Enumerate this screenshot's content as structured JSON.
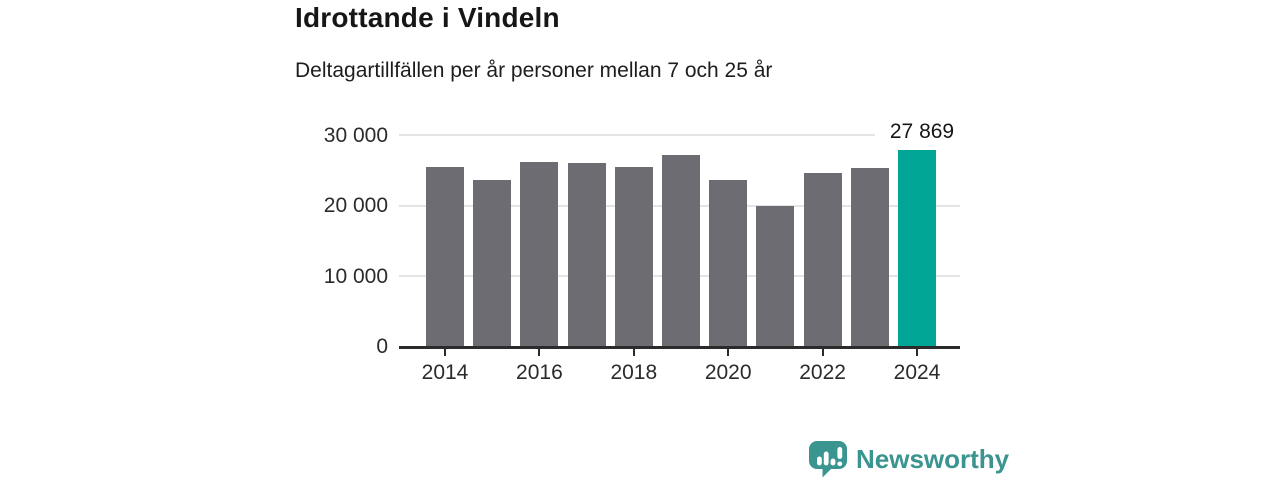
{
  "header": {
    "title": "Idrottande i Vindeln",
    "subtitle": "Deltagartillfällen per år personer mellan 7 och 25 år"
  },
  "chart_data": {
    "type": "bar",
    "title": "Idrottande i Vindeln",
    "subtitle": "Deltagartillfällen per år personer mellan 7 och 25 år",
    "categories": [
      "2014",
      "2015",
      "2016",
      "2017",
      "2018",
      "2019",
      "2020",
      "2021",
      "2022",
      "2023",
      "2024"
    ],
    "values": [
      25400,
      23550,
      26100,
      26050,
      25400,
      27200,
      23650,
      19950,
      24650,
      25300,
      27869
    ],
    "highlight_index": 10,
    "highlight_value_label": "27 869",
    "bar_color": "#6c6c72",
    "highlight_color": "#00a596",
    "ylim": [
      0,
      30000
    ],
    "yticks": [
      0,
      10000,
      20000,
      30000
    ],
    "ytick_labels": [
      "0",
      "10 000",
      "20 000",
      "30 000"
    ],
    "xtick_labels": [
      "2014",
      "2016",
      "2018",
      "2020",
      "2022",
      "2024"
    ],
    "grid": "horizontal",
    "legend": "none",
    "gridline_color": "#e4e4e4",
    "axis_color": "#2b2b2b"
  },
  "footer": {
    "brand": "Newsworthy",
    "brand_color": "#3a948f",
    "logo_icon": "bar-chart-speech-bubble-icon"
  }
}
